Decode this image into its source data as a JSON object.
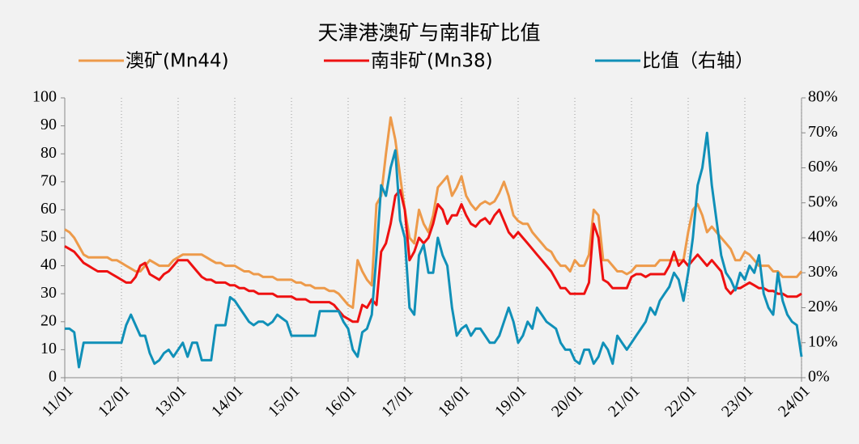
{
  "chart_data": {
    "type": "line",
    "title": "天津港澳矿与南非矿比值",
    "categories": [
      "11/01",
      null,
      null,
      null,
      null,
      null,
      null,
      null,
      null,
      null,
      null,
      null,
      "12/01",
      null,
      null,
      null,
      null,
      null,
      null,
      null,
      null,
      null,
      null,
      null,
      "13/01",
      null,
      null,
      null,
      null,
      null,
      null,
      null,
      null,
      null,
      null,
      null,
      "14/01",
      null,
      null,
      null,
      null,
      null,
      null,
      null,
      null,
      null,
      null,
      null,
      "15/01",
      null,
      null,
      null,
      null,
      null,
      null,
      null,
      null,
      null,
      null,
      null,
      "16/01",
      null,
      null,
      null,
      null,
      null,
      null,
      null,
      null,
      null,
      null,
      null,
      "17/01",
      null,
      null,
      null,
      null,
      null,
      null,
      null,
      null,
      null,
      null,
      null,
      "18/01",
      null,
      null,
      null,
      null,
      null,
      null,
      null,
      null,
      null,
      null,
      null,
      "19/01",
      null,
      null,
      null,
      null,
      null,
      null,
      null,
      null,
      null,
      null,
      null,
      "20/01",
      null,
      null,
      null,
      null,
      null,
      null,
      null,
      null,
      null,
      null,
      null,
      "21/01",
      null,
      null,
      null,
      null,
      null,
      null,
      null,
      null,
      null,
      null,
      null,
      "22/01",
      null,
      null,
      null,
      null,
      null,
      null,
      null,
      null,
      null,
      null,
      null,
      "23/01",
      null,
      null,
      null,
      null,
      null,
      null,
      null,
      null,
      null,
      null,
      null,
      "24/01"
    ],
    "series": [
      {
        "name": "澳矿(Mn44)",
        "color": "#ed9a4a",
        "values": [
          53,
          52,
          50,
          47,
          44,
          43,
          43,
          43,
          43,
          43,
          42,
          42,
          41,
          40,
          39,
          38,
          38,
          40,
          42,
          41,
          40,
          40,
          40,
          42,
          43,
          44,
          44,
          44,
          44,
          44,
          43,
          42,
          41,
          41,
          40,
          40,
          40,
          39,
          38,
          38,
          37,
          37,
          36,
          36,
          36,
          35,
          35,
          35,
          35,
          34,
          34,
          33,
          33,
          32,
          32,
          32,
          31,
          31,
          30,
          28,
          26,
          25,
          42,
          38,
          35,
          33,
          62,
          65,
          80,
          93,
          85,
          72,
          60,
          50,
          48,
          60,
          55,
          52,
          58,
          68,
          70,
          72,
          65,
          68,
          72,
          65,
          62,
          60,
          62,
          63,
          62,
          63,
          66,
          70,
          65,
          58,
          56,
          55,
          55,
          52,
          50,
          48,
          46,
          45,
          42,
          40,
          40,
          38,
          42,
          40,
          40,
          44,
          60,
          58,
          42,
          42,
          40,
          38,
          38,
          37,
          38,
          40,
          40,
          40,
          40,
          40,
          42,
          42,
          42,
          42,
          42,
          42,
          52,
          60,
          62,
          58,
          52,
          54,
          52,
          50,
          48,
          46,
          42,
          42,
          45,
          44,
          42,
          40,
          40,
          40,
          38,
          38,
          36,
          36,
          36,
          36,
          38
        ]
      },
      {
        "name": "南非矿(Mn38)",
        "color": "#ee1111",
        "values": [
          47,
          46,
          45,
          43,
          41,
          40,
          39,
          38,
          38,
          38,
          37,
          36,
          35,
          34,
          34,
          36,
          40,
          41,
          37,
          36,
          35,
          37,
          38,
          40,
          42,
          42,
          42,
          40,
          38,
          36,
          35,
          35,
          34,
          34,
          34,
          33,
          33,
          32,
          32,
          31,
          31,
          30,
          30,
          30,
          30,
          29,
          29,
          29,
          29,
          28,
          28,
          28,
          27,
          27,
          27,
          27,
          27,
          26,
          24,
          22,
          21,
          20,
          20,
          26,
          25,
          28,
          26,
          45,
          48,
          55,
          65,
          67,
          60,
          42,
          45,
          50,
          48,
          50,
          55,
          62,
          60,
          55,
          58,
          58,
          62,
          58,
          55,
          54,
          56,
          57,
          55,
          58,
          60,
          56,
          52,
          50,
          52,
          50,
          48,
          46,
          44,
          42,
          40,
          38,
          35,
          32,
          32,
          30,
          30,
          30,
          30,
          34,
          55,
          50,
          35,
          34,
          32,
          32,
          32,
          32,
          36,
          37,
          37,
          36,
          37,
          37,
          37,
          37,
          40,
          45,
          40,
          42,
          40,
          42,
          44,
          42,
          40,
          42,
          40,
          38,
          32,
          30,
          32,
          32,
          33,
          34,
          33,
          32,
          32,
          31,
          31,
          30,
          30,
          29,
          29,
          29,
          30
        ]
      },
      {
        "name": "比值（右轴）",
        "color": "#1090b8",
        "axis": "y2",
        "values": [
          14,
          14,
          13,
          3,
          10,
          10,
          10,
          10,
          10,
          10,
          10,
          10,
          10,
          15,
          18,
          15,
          12,
          12,
          7,
          4,
          5,
          7,
          8,
          6,
          8,
          10,
          6,
          10,
          10,
          5,
          5,
          5,
          15,
          15,
          15,
          23,
          22,
          20,
          18,
          16,
          15,
          16,
          16,
          15,
          16,
          18,
          17,
          16,
          12,
          12,
          12,
          12,
          12,
          12,
          19,
          19,
          19,
          19,
          19,
          16,
          14,
          8,
          6,
          13,
          14,
          18,
          35,
          55,
          52,
          60,
          65,
          45,
          40,
          20,
          18,
          35,
          38,
          30,
          30,
          40,
          35,
          32,
          20,
          12,
          14,
          15,
          12,
          14,
          14,
          12,
          10,
          10,
          12,
          16,
          20,
          16,
          10,
          12,
          16,
          14,
          20,
          18,
          16,
          15,
          14,
          10,
          8,
          8,
          5,
          4,
          8,
          8,
          4,
          6,
          10,
          8,
          4,
          12,
          10,
          8,
          10,
          12,
          14,
          16,
          20,
          18,
          22,
          24,
          26,
          30,
          28,
          22,
          30,
          40,
          55,
          60,
          70,
          55,
          45,
          35,
          30,
          28,
          25,
          30,
          28,
          32,
          30,
          35,
          24,
          20,
          18,
          30,
          22,
          18,
          16,
          15,
          6
        ]
      }
    ],
    "ylim": [
      0,
      100
    ],
    "yticks": [
      0,
      10,
      20,
      30,
      40,
      50,
      60,
      70,
      80,
      90,
      100
    ],
    "y2lim": [
      0,
      80
    ],
    "y2ticks": [
      {
        "value": 0,
        "label": "0%"
      },
      {
        "value": 10,
        "label": "10%"
      },
      {
        "value": 20,
        "label": "20%"
      },
      {
        "value": 30,
        "label": "30%"
      },
      {
        "value": 40,
        "label": "40%"
      },
      {
        "value": 50,
        "label": "50%"
      },
      {
        "value": 60,
        "label": "60%"
      },
      {
        "value": 70,
        "label": "70%"
      },
      {
        "value": 80,
        "label": "80%"
      }
    ],
    "grid": true
  }
}
